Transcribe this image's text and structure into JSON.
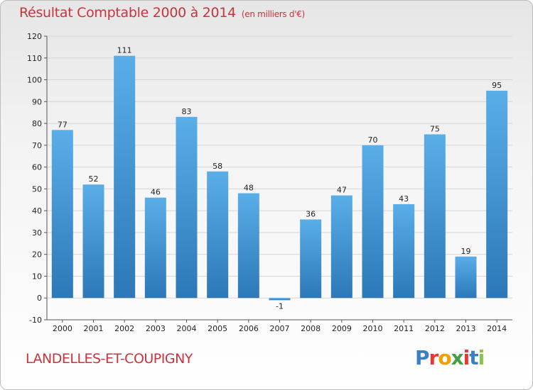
{
  "header": {
    "title": "Résultat Comptable 2000 à 2014",
    "subtitle": "(en milliers d'€)"
  },
  "footer": {
    "commune": "LANDELLES-ET-COUPIGNY",
    "logo_text": [
      "P",
      "r",
      "o",
      "x",
      "i",
      "t",
      "i"
    ],
    "logo_colors": [
      "#3b7fc4",
      "#e53935",
      "#f2a000",
      "#43a047",
      "#e53935",
      "#3b7fc4",
      "#8bc34a"
    ]
  },
  "colors": {
    "bar_top": "#5aaee8",
    "bar_bottom": "#2c78b8",
    "grid": "#d6d6d6",
    "title": "#c8343c"
  },
  "chart_data": {
    "type": "bar",
    "categories": [
      "2000",
      "2001",
      "2002",
      "2003",
      "2004",
      "2005",
      "2006",
      "2007",
      "2008",
      "2009",
      "2010",
      "2011",
      "2012",
      "2013",
      "2014"
    ],
    "values": [
      77,
      52,
      111,
      46,
      83,
      58,
      48,
      -1,
      36,
      47,
      70,
      43,
      75,
      19,
      95
    ],
    "value_labels": [
      "77",
      "52",
      "111",
      "46",
      "83",
      "58",
      "48",
      "-1",
      "36",
      "47",
      "70",
      "43",
      "75",
      "19",
      "95"
    ],
    "ylim": [
      -10,
      120
    ],
    "yticks": [
      -10,
      0,
      10,
      20,
      30,
      40,
      50,
      60,
      70,
      80,
      90,
      100,
      110,
      120
    ],
    "ytick_labels": [
      "-10",
      "0",
      "10",
      "20",
      "30",
      "40",
      "50",
      "60",
      "70",
      "80",
      "90",
      "100",
      "110",
      "120"
    ],
    "grid": true
  }
}
